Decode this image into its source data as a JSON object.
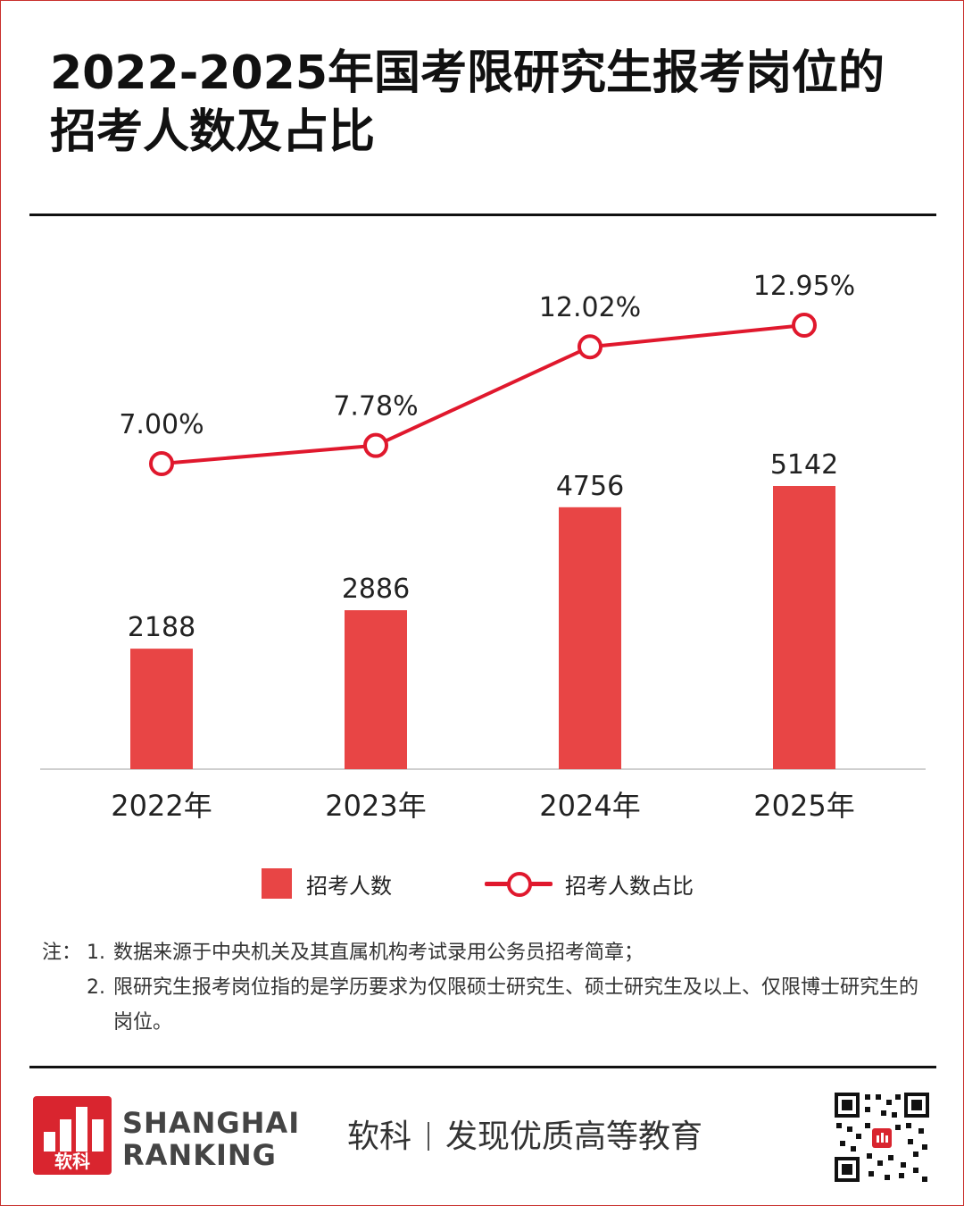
{
  "header": {
    "title": "2022-2025年国考限研究生报考岗位的招考人数及占比"
  },
  "chart_data": {
    "type": "bar",
    "categories": [
      "2022年",
      "2023年",
      "2024年",
      "2025年"
    ],
    "series": [
      {
        "name": "招考人数",
        "type": "bar",
        "values": [
          2188,
          2886,
          4756,
          5142
        ],
        "labels": [
          "2188",
          "2886",
          "4756",
          "5142"
        ],
        "color": "#e84545"
      },
      {
        "name": "招考人数占比",
        "type": "line",
        "values": [
          7.0,
          7.78,
          12.02,
          12.95
        ],
        "labels": [
          "7.00%",
          "7.78%",
          "12.02%",
          "12.95%"
        ],
        "color": "#e0182d"
      }
    ],
    "legend_position": "bottom",
    "grid": false
  },
  "legend": {
    "bar_label": "招考人数",
    "line_label": "招考人数占比"
  },
  "notes": {
    "lead": "注：",
    "items": [
      {
        "num": "1.",
        "text": "数据来源于中央机关及其直属机构考试录用公务员招考简章；"
      },
      {
        "num": "2.",
        "text": "限研究生报考岗位指的是学历要求为仅限硕士研究生、硕士研究生及以上、仅限博士研究生的岗位。"
      }
    ]
  },
  "footer": {
    "logo_text": "软科",
    "brand_line1": "SHANGHAI",
    "brand_line2": "RANKING",
    "slogan_left": "软科",
    "slogan_right": "发现优质高等教育"
  },
  "colors": {
    "bar": "#e84545",
    "line": "#e0182d",
    "brand": "#d9252f"
  }
}
